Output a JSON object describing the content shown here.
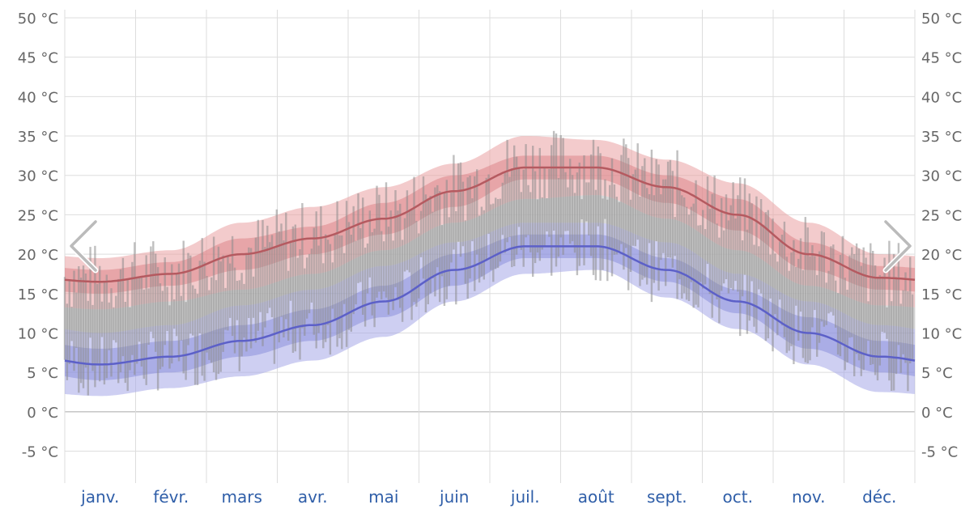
{
  "colors": {
    "max_band": "#e9a0a3",
    "max_band_inner": "#d9787c",
    "max_line": "#b55a60",
    "min_band": "#a6a8e8",
    "min_band_inner": "#7f82d8",
    "min_line": "#5c60c8",
    "daily_bars": "#8c8c8c",
    "grid": "#dddddd",
    "month_label": "#2f5ea8",
    "arrow": "#bbbbbb"
  },
  "navigation": {
    "prev_icon": "chevron-left-icon",
    "next_icon": "chevron-right-icon"
  },
  "chart_data": {
    "type": "area",
    "title": "",
    "xlabel": "",
    "ylabel": "",
    "y_unit": "°C",
    "ylim": [
      -7,
      50
    ],
    "y_ticks": [
      {
        "value": 50,
        "label": "50 °C"
      },
      {
        "value": 45,
        "label": "45 °C"
      },
      {
        "value": 40,
        "label": "40 °C"
      },
      {
        "value": 35,
        "label": "35 °C"
      },
      {
        "value": 30,
        "label": "30 °C"
      },
      {
        "value": 25,
        "label": "25 °C"
      },
      {
        "value": 20,
        "label": "20 °C"
      },
      {
        "value": 15,
        "label": "15 °C"
      },
      {
        "value": 10,
        "label": "10 °C"
      },
      {
        "value": 5,
        "label": "5 °C"
      },
      {
        "value": 0,
        "label": "0 °C"
      },
      {
        "value": -5,
        "label": "-5 °C"
      }
    ],
    "categories": [
      "janv.",
      "févr.",
      "mars",
      "avr.",
      "mai",
      "juin",
      "juil.",
      "août",
      "sept.",
      "oct.",
      "nov.",
      "déc."
    ],
    "grid": true,
    "legend": "none",
    "series": [
      {
        "values": [
          16.5,
          17.5,
          20,
          22,
          24.5,
          28,
          31,
          31,
          28.5,
          25,
          20,
          17
        ],
        "band_outer": {
          "low": [
            13,
            14,
            15.5,
            17.5,
            20.5,
            24,
            27,
            27.5,
            24.5,
            20.5,
            16,
            13.5
          ],
          "high": [
            19.5,
            20.5,
            24,
            26,
            28.5,
            31.5,
            35,
            34.5,
            32,
            29,
            24,
            20
          ]
        },
        "band_inner": {
          "low": [
            15,
            16,
            18,
            20,
            22.5,
            26,
            29.5,
            29.5,
            26.5,
            23,
            18,
            15.5
          ],
          "high": [
            18,
            19,
            22,
            23.5,
            26.5,
            30,
            32.5,
            32.5,
            30,
            27,
            21.5,
            18.5
          ]
        }
      },
      {
        "values": [
          6,
          7,
          9,
          11,
          14,
          18,
          21,
          21,
          18,
          14,
          10,
          7
        ],
        "band_outer": {
          "low": [
            2,
            3,
            4.5,
            6.5,
            9.5,
            14,
            17.5,
            18,
            14.5,
            10.5,
            6,
            2.5
          ],
          "high": [
            10,
            11,
            13.5,
            15.5,
            18.5,
            21.5,
            24,
            24,
            21.5,
            17.5,
            14,
            11
          ]
        },
        "band_inner": {
          "low": [
            4,
            5,
            7,
            9,
            12,
            16,
            19.5,
            19.5,
            16.5,
            12.5,
            8,
            5
          ],
          "high": [
            8,
            9,
            11,
            13,
            16,
            20,
            22.5,
            22.5,
            19.5,
            15.5,
            12,
            9
          ]
        }
      }
    ]
  }
}
